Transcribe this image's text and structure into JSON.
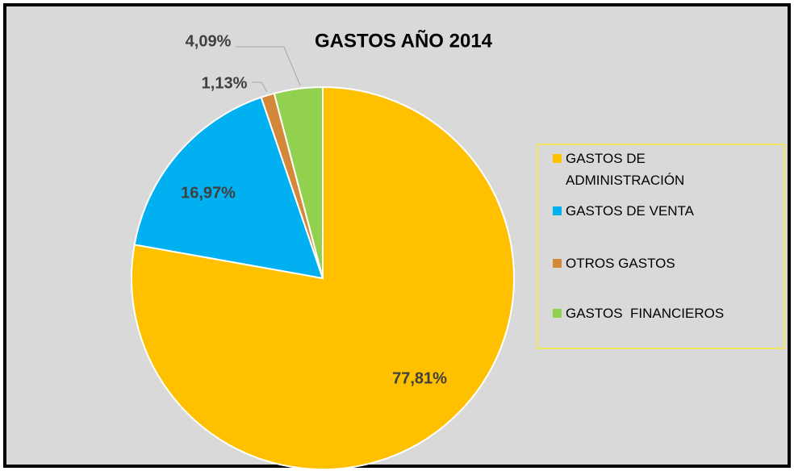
{
  "chart_data": {
    "type": "pie",
    "title": "GASTOS AÑO 2014",
    "categories": [
      "GASTOS DE ADMINISTRACIÓN",
      "GASTOS DE VENTA",
      "OTROS GASTOS",
      "GASTOS  FINANCIEROS"
    ],
    "values": [
      77.81,
      16.97,
      1.13,
      4.09
    ],
    "value_labels": [
      "77,81%",
      "16,97%",
      "1,13%",
      "4,09%"
    ],
    "colors": [
      "#ffc000",
      "#00b0f0",
      "#d4883a",
      "#92d050"
    ]
  }
}
